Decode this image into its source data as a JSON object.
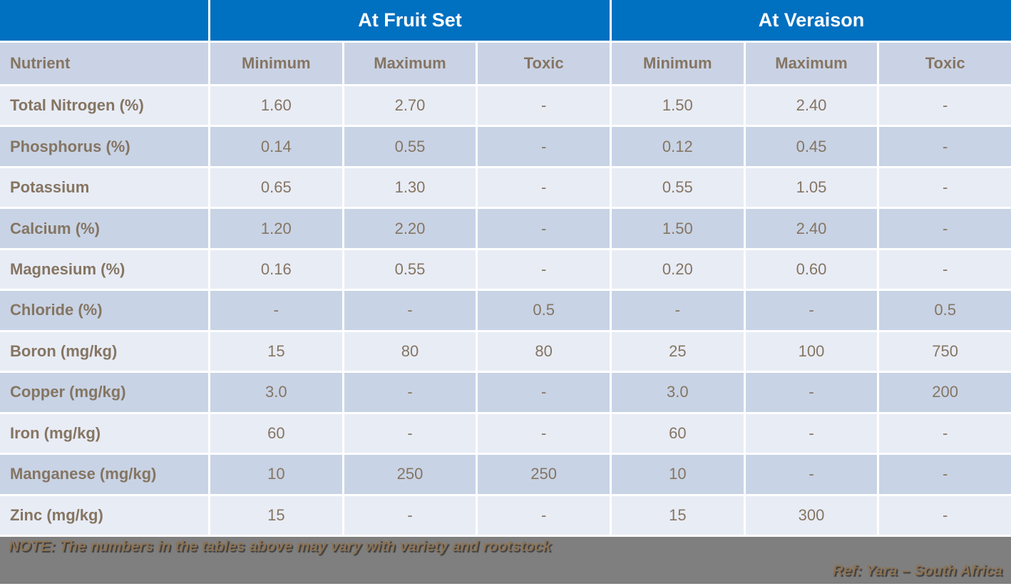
{
  "colors": {
    "header_blue": "#0070C0",
    "header_text": "#FFFFFF",
    "subheader_bg": "#CAD3E5",
    "row_light": "#E8ECF5",
    "row_dark": "#C8D3E5",
    "cell_text": "#857562",
    "footer_bg": "#7F7F7F",
    "footer_text": "#8C7355"
  },
  "table": {
    "group_headers": [
      {
        "label": "",
        "span": 1
      },
      {
        "label": "At Fruit Set",
        "span": 3
      },
      {
        "label": "At Veraison",
        "span": 3
      }
    ],
    "column_headers": [
      "Nutrient",
      "Minimum",
      "Maximum",
      "Toxic",
      "Minimum",
      "Maximum",
      "Toxic"
    ],
    "rows": [
      {
        "nutrient": "Total Nitrogen (%)",
        "values": [
          "1.60",
          "2.70",
          "-",
          "1.50",
          "2.40",
          "-"
        ]
      },
      {
        "nutrient": "Phosphorus (%)",
        "values": [
          "0.14",
          "0.55",
          "-",
          "0.12",
          "0.45",
          "-"
        ]
      },
      {
        "nutrient": "Potassium",
        "values": [
          "0.65",
          "1.30",
          "-",
          "0.55",
          "1.05",
          "-"
        ]
      },
      {
        "nutrient": "Calcium (%)",
        "values": [
          "1.20",
          "2.20",
          "-",
          "1.50",
          "2.40",
          "-"
        ]
      },
      {
        "nutrient": "Magnesium (%)",
        "values": [
          "0.16",
          "0.55",
          "-",
          "0.20",
          "0.60",
          "-"
        ]
      },
      {
        "nutrient": "Chloride (%)",
        "values": [
          "-",
          "-",
          "0.5",
          "-",
          "-",
          "0.5"
        ]
      },
      {
        "nutrient": "Boron (mg/kg)",
        "values": [
          "15",
          "80",
          "80",
          "25",
          "100",
          "750"
        ]
      },
      {
        "nutrient": "Copper (mg/kg)",
        "values": [
          "3.0",
          "-",
          "-",
          "3.0",
          "-",
          "200"
        ]
      },
      {
        "nutrient": "Iron (mg/kg)",
        "values": [
          "60",
          "-",
          "-",
          "60",
          "-",
          "-"
        ]
      },
      {
        "nutrient": "Manganese (mg/kg)",
        "values": [
          "10",
          "250",
          "250",
          "10",
          "-",
          "-"
        ]
      },
      {
        "nutrient": "Zinc (mg/kg)",
        "values": [
          "15",
          "-",
          "-",
          "15",
          "300",
          "-"
        ]
      }
    ]
  },
  "footer": {
    "note": "NOTE: The numbers in the tables above may vary with variety and rootstock",
    "ref": "Ref: Yara – South Africa"
  },
  "chart_data": {
    "type": "table",
    "columns": [
      "Nutrient",
      "At Fruit Set Minimum",
      "At Fruit Set Maximum",
      "At Fruit Set Toxic",
      "At Veraison Minimum",
      "At Veraison Maximum",
      "At Veraison Toxic"
    ],
    "rows": [
      [
        "Total Nitrogen (%)",
        "1.60",
        "2.70",
        "-",
        "1.50",
        "2.40",
        "-"
      ],
      [
        "Phosphorus (%)",
        "0.14",
        "0.55",
        "-",
        "0.12",
        "0.45",
        "-"
      ],
      [
        "Potassium",
        "0.65",
        "1.30",
        "-",
        "0.55",
        "1.05",
        "-"
      ],
      [
        "Calcium (%)",
        "1.20",
        "2.20",
        "-",
        "1.50",
        "2.40",
        "-"
      ],
      [
        "Magnesium (%)",
        "0.16",
        "0.55",
        "-",
        "0.20",
        "0.60",
        "-"
      ],
      [
        "Chloride (%)",
        "-",
        "-",
        "0.5",
        "-",
        "-",
        "0.5"
      ],
      [
        "Boron (mg/kg)",
        "15",
        "80",
        "80",
        "25",
        "100",
        "750"
      ],
      [
        "Copper (mg/kg)",
        "3.0",
        "-",
        "-",
        "3.0",
        "-",
        "200"
      ],
      [
        "Iron (mg/kg)",
        "60",
        "-",
        "-",
        "60",
        "-",
        "-"
      ],
      [
        "Manganese (mg/kg)",
        "10",
        "250",
        "250",
        "10",
        "-",
        "-"
      ],
      [
        "Zinc (mg/kg)",
        "15",
        "-",
        "-",
        "15",
        "300",
        "-"
      ]
    ]
  }
}
